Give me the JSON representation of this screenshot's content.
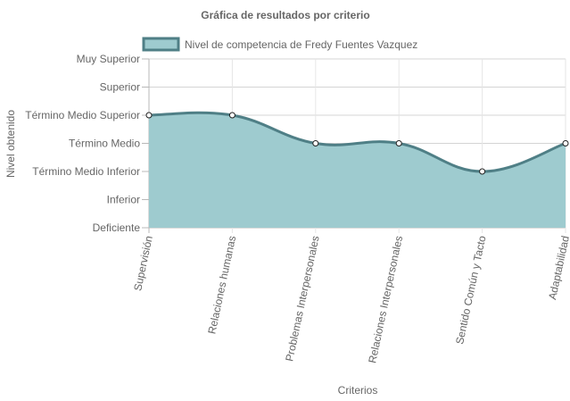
{
  "chart_data": {
    "type": "area",
    "title": "Gráfica de resultados por criterio",
    "xlabel": "Criterios",
    "ylabel": "Nivel obtenido",
    "categories": [
      "Supervisión",
      "Relaciones humanas",
      "Problemas Interpersonales",
      "Relaciones Interpersonales",
      "Sentido Común y Tacto",
      "Adaptabilidad"
    ],
    "y_levels": [
      "Deficiente",
      "Inferior",
      "Término Medio Inferior",
      "Término Medio",
      "Término Medio Superior",
      "Superior",
      "Muy Superior"
    ],
    "ylim": [
      0,
      6
    ],
    "series": [
      {
        "name": "Nivel de competencia de Fredy Fuentes Vazquez",
        "values": [
          4,
          4,
          3,
          3,
          2,
          3
        ],
        "fill_color": "#9ecbcf",
        "line_color": "#4f7f86"
      }
    ],
    "grid": true,
    "legend_position": "top"
  }
}
